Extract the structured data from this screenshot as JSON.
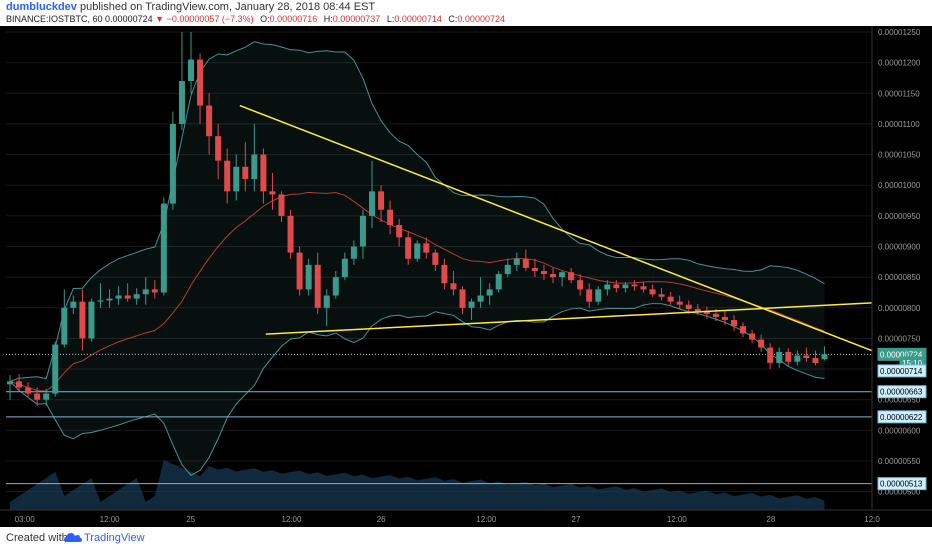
{
  "header": {
    "author": "dumbluckdev",
    "published": "published on TradingView.com, January 28, 2018 08:44 EST",
    "symbol": "BINANCE:IOSTBTC, 60",
    "last": "0.00000724",
    "arrow": "▼",
    "change": "−0.00000057 (−7.3%)",
    "o_label": "O:",
    "o_value": "0.00000716",
    "h_label": "H:",
    "h_value": "0.00000737",
    "l_label": "L:",
    "l_value": "0.00000714",
    "c_label": "C:",
    "c_value": "0.00000724"
  },
  "footer": {
    "created": "Created with",
    "brand": "TradingView"
  },
  "colors": {
    "up": "#3c9a8c",
    "down": "#e04a4a",
    "trendline": "#ffeb3b",
    "bb_band": "#4c8f93",
    "bb_basis": "#b33b3b",
    "volume": "#1e4a70",
    "hline": "#78b9d8",
    "tag_bg": "#cdefff"
  },
  "chart_data": {
    "type": "candlestick",
    "y_axis": {
      "ticks": [
        "0.00001250",
        "0.00001200",
        "0.00001150",
        "0.00001100",
        "0.00001050",
        "0.00001000",
        "0.00000950",
        "0.00000900",
        "0.00000850",
        "0.00000800",
        "0.00000750",
        "0.00000700",
        "0.00000650",
        "0.00000600",
        "0.00000550",
        "0.00000500"
      ],
      "ylim": [
        4.7e-06,
        1.25e-05
      ]
    },
    "x_axis": {
      "ticks": [
        "03:00",
        "12:00",
        "25",
        "12:00",
        "26",
        "12:00",
        "27",
        "12:00",
        "28",
        "12:0"
      ]
    },
    "price_tags": [
      {
        "label": "0.00000724",
        "value": 7.24e-06,
        "style": "current"
      },
      {
        "label": "15:10",
        "value": 7.1e-06,
        "style": "timer"
      },
      {
        "label": "0.00000714",
        "value": 6.97e-06,
        "style": "line"
      },
      {
        "label": "0.00000663",
        "value": 6.63e-06,
        "style": "line"
      },
      {
        "label": "0.00000622",
        "value": 6.22e-06,
        "style": "line"
      },
      {
        "label": "0.00000513",
        "value": 5.13e-06,
        "style": "line"
      }
    ],
    "horizontal_lines": [
      6.63e-06,
      6.22e-06,
      5.13e-06
    ],
    "candles": [
      [
        6.75e-06,
        6.9e-06,
        6.5e-06,
        6.8e-06
      ],
      [
        6.8e-06,
        6.92e-06,
        6.65e-06,
        6.7e-06
      ],
      [
        6.7e-06,
        6.78e-06,
        6.55e-06,
        6.6e-06
      ],
      [
        6.6e-06,
        6.7e-06,
        6.4e-06,
        6.5e-06
      ],
      [
        6.5e-06,
        6.68e-06,
        6.4e-06,
        6.6e-06
      ],
      [
        6.6e-06,
        7.45e-06,
        6.55e-06,
        7.4e-06
      ],
      [
        7.4e-06,
        8.3e-06,
        7.35e-06,
        8e-06
      ],
      [
        8e-06,
        8.2e-06,
        7.9e-06,
        8.1e-06
      ],
      [
        8.1e-06,
        8.3e-06,
        7.3e-06,
        7.5e-06
      ],
      [
        7.5e-06,
        8.15e-06,
        7.45e-06,
        8.1e-06
      ],
      [
        8.1e-06,
        8.4e-06,
        8e-06,
        8.12e-06
      ],
      [
        8.12e-06,
        8.3e-06,
        8e-06,
        8.15e-06
      ],
      [
        8.15e-06,
        8.35e-06,
        8.05e-06,
        8.2e-06
      ],
      [
        8.2e-06,
        8.4e-06,
        8.1e-06,
        8.15e-06
      ],
      [
        8.15e-06,
        8.32e-06,
        8.05e-06,
        8.22e-06
      ],
      [
        8.22e-06,
        8.5e-06,
        8.05e-06,
        8.3e-06
      ],
      [
        8.3e-06,
        8.45e-06,
        8.15e-06,
        8.25e-06
      ],
      [
        8.25e-06,
        9.8e-06,
        8.2e-06,
        9.7e-06
      ],
      [
        9.7e-06,
        1.12e-05,
        9.6e-06,
        1.1e-05
      ],
      [
        1.1e-05,
        1.25e-05,
        1.09e-05,
        1.17e-05
      ],
      [
        1.17e-05,
        1.25e-05,
        1.15e-05,
        1.205e-05
      ],
      [
        1.205e-05,
        1.215e-05,
        1.1e-05,
        1.13e-05
      ],
      [
        1.13e-05,
        1.15e-05,
        1.05e-05,
        1.08e-05
      ],
      [
        1.08e-05,
        1.1e-05,
        1.01e-05,
        1.04e-05
      ],
      [
        1.04e-05,
        1.06e-05,
        9.7e-06,
        9.9e-06
      ],
      [
        9.9e-06,
        1.05e-05,
        9.75e-06,
        1.03e-05
      ],
      [
        1.03e-05,
        1.07e-05,
        9.9e-06,
        1.01e-05
      ],
      [
        1.01e-05,
        1.1e-05,
        9.9e-06,
        1.05e-05
      ],
      [
        1.05e-05,
        1.06e-05,
        9.7e-06,
        9.9e-06
      ],
      [
        9.9e-06,
        1.02e-05,
        9.6e-06,
        9.85e-06
      ],
      [
        9.85e-06,
        9.9e-06,
        9.4e-06,
        9.5e-06
      ],
      [
        9.5e-06,
        9.6e-06,
        8.8e-06,
        8.9e-06
      ],
      [
        8.9e-06,
        9e-06,
        8.2e-06,
        8.3e-06
      ],
      [
        8.3e-06,
        8.8e-06,
        8.2e-06,
        8.7e-06
      ],
      [
        8.7e-06,
        8.9e-06,
        7.9e-06,
        8e-06
      ],
      [
        8e-06,
        8.3e-06,
        7.7e-06,
        8.2e-06
      ],
      [
        8.2e-06,
        8.6e-06,
        8.15e-06,
        8.5e-06
      ],
      [
        8.5e-06,
        8.9e-06,
        8.45e-06,
        8.8e-06
      ],
      [
        8.8e-06,
        9.1e-06,
        8.7e-06,
        9e-06
      ],
      [
        9e-06,
        9.6e-06,
        8.8e-06,
        9.5e-06
      ],
      [
        9.5e-06,
        1.04e-05,
        9.3e-06,
        9.9e-06
      ],
      [
        9.9e-06,
        1e-05,
        9.4e-06,
        9.6e-06
      ],
      [
        9.6e-06,
        9.75e-06,
        9.2e-06,
        9.35e-06
      ],
      [
        9.35e-06,
        9.45e-06,
        9e-06,
        9.15e-06
      ],
      [
        9.15e-06,
        9.25e-06,
        8.7e-06,
        8.8e-06
      ],
      [
        8.8e-06,
        9.1e-06,
        8.75e-06,
        9.05e-06
      ],
      [
        9.05e-06,
        9.15e-06,
        8.8e-06,
        8.9e-06
      ],
      [
        8.9e-06,
        8.95e-06,
        8.6e-06,
        8.7e-06
      ],
      [
        8.7e-06,
        8.8e-06,
        8.3e-06,
        8.4e-06
      ],
      [
        8.4e-06,
        8.6e-06,
        8.2e-06,
        8.3e-06
      ],
      [
        8.3e-06,
        8.35e-06,
        7.9e-06,
        8e-06
      ],
      [
        8e-06,
        8.15e-06,
        7.8e-06,
        8.1e-06
      ],
      [
        8.1e-06,
        8.5e-06,
        8e-06,
        8.2e-06
      ],
      [
        8.2e-06,
        8.4e-06,
        8.05e-06,
        8.3e-06
      ],
      [
        8.3e-06,
        8.6e-06,
        8.25e-06,
        8.55e-06
      ],
      [
        8.55e-06,
        8.8e-06,
        8.5e-06,
        8.7e-06
      ],
      [
        8.7e-06,
        8.9e-06,
        8.6e-06,
        8.8e-06
      ],
      [
        8.8e-06,
        8.95e-06,
        8.6e-06,
        8.65e-06
      ],
      [
        8.65e-06,
        8.8e-06,
        8.5e-06,
        8.6e-06
      ],
      [
        8.6e-06,
        8.7e-06,
        8.45e-06,
        8.55e-06
      ],
      [
        8.55e-06,
        8.65e-06,
        8.4e-06,
        8.5e-06
      ],
      [
        8.5e-06,
        8.6e-06,
        8.35e-06,
        8.58e-06
      ],
      [
        8.58e-06,
        8.65e-06,
        8.4e-06,
        8.45e-06
      ],
      [
        8.45e-06,
        8.55e-06,
        8.2e-06,
        8.3e-06
      ],
      [
        8.3e-06,
        8.4e-06,
        8e-06,
        8.1e-06
      ],
      [
        8.1e-06,
        8.35e-06,
        8.05e-06,
        8.3e-06
      ],
      [
        8.3e-06,
        8.45e-06,
        8.2e-06,
        8.38e-06
      ],
      [
        8.38e-06,
        8.45e-06,
        8.25e-06,
        8.32e-06
      ],
      [
        8.32e-06,
        8.42e-06,
        8.25e-06,
        8.38e-06
      ],
      [
        8.38e-06,
        8.45e-06,
        8.28e-06,
        8.35e-06
      ],
      [
        8.35e-06,
        8.42e-06,
        8.25e-06,
        8.3e-06
      ],
      [
        8.3e-06,
        8.38e-06,
        8.18e-06,
        8.22e-06
      ],
      [
        8.22e-06,
        8.32e-06,
        8.12e-06,
        8.18e-06
      ],
      [
        8.18e-06,
        8.26e-06,
        8.05e-06,
        8.1e-06
      ],
      [
        8.1e-06,
        8.2e-06,
        7.98e-06,
        8.05e-06
      ],
      [
        8.05e-06,
        8.12e-06,
        7.9e-06,
        7.98e-06
      ],
      [
        7.98e-06,
        8.06e-06,
        7.88e-06,
        7.94e-06
      ],
      [
        7.94e-06,
        8.02e-06,
        7.82e-06,
        7.9e-06
      ],
      [
        7.9e-06,
        7.98e-06,
        7.78e-06,
        7.85e-06
      ],
      [
        7.85e-06,
        7.95e-06,
        7.72e-06,
        7.8e-06
      ],
      [
        7.8e-06,
        7.88e-06,
        7.62e-06,
        7.7e-06
      ],
      [
        7.7e-06,
        7.76e-06,
        7.52e-06,
        7.58e-06
      ],
      [
        7.58e-06,
        7.64e-06,
        7.42e-06,
        7.48e-06
      ],
      [
        7.48e-06,
        7.56e-06,
        7.28e-06,
        7.35e-06
      ],
      [
        7.35e-06,
        7.42e-06,
        7e-06,
        7.1e-06
      ],
      [
        7.1e-06,
        7.35e-06,
        7.02e-06,
        7.28e-06
      ],
      [
        7.28e-06,
        7.34e-06,
        7.05e-06,
        7.12e-06
      ],
      [
        7.12e-06,
        7.3e-06,
        7.06e-06,
        7.22e-06
      ],
      [
        7.22e-06,
        7.35e-06,
        7.12e-06,
        7.18e-06
      ],
      [
        7.18e-06,
        7.3e-06,
        7.06e-06,
        7.1e-06
      ],
      [
        7.16e-06,
        7.37e-06,
        7.14e-06,
        7.24e-06
      ]
    ],
    "trendlines": [
      {
        "from": [
          0.27,
          1.13e-05
        ],
        "to": [
          1.0,
          7.3e-06
        ]
      },
      {
        "from": [
          0.3,
          7.57e-06
        ],
        "to": [
          1.0,
          8.08e-06
        ]
      }
    ],
    "overlays": [
      "Bollinger Bands",
      "Volume"
    ]
  }
}
